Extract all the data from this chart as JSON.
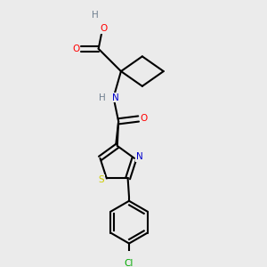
{
  "bg_color": "#ebebeb",
  "bond_color": "#000000",
  "atom_colors": {
    "O": "#ff0000",
    "N": "#0000cd",
    "S": "#cccc00",
    "Cl": "#00aa00",
    "H": "#708090",
    "C": "#000000"
  },
  "line_width": 1.5,
  "figsize": [
    3.0,
    3.0
  ],
  "dpi": 100
}
